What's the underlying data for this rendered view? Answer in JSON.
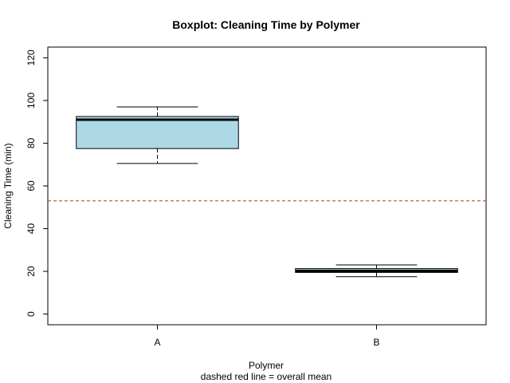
{
  "chart_data": {
    "type": "boxplot",
    "title": "Boxplot: Cleaning Time by Polymer",
    "xlabel": "Polymer",
    "xsublabel": "dashed red line = overall mean",
    "ylabel": "Cleaning Time (min)",
    "ylim": [
      -5,
      125
    ],
    "yticks": [
      0,
      20,
      40,
      60,
      80,
      100,
      120
    ],
    "categories": [
      "A",
      "B"
    ],
    "boxes": [
      {
        "category": "A",
        "min": 70.5,
        "q1": 77.5,
        "median": 91,
        "q3": 92.5,
        "max": 97
      },
      {
        "category": "B",
        "min": 17.5,
        "q1": 19.5,
        "median": 20.2,
        "q3": 21.3,
        "max": 23
      }
    ],
    "reference_line": {
      "value": 53,
      "style": "dashed",
      "color": "#cc3311"
    },
    "box_fill": "#add8e6",
    "grid": false,
    "legend": "none"
  }
}
